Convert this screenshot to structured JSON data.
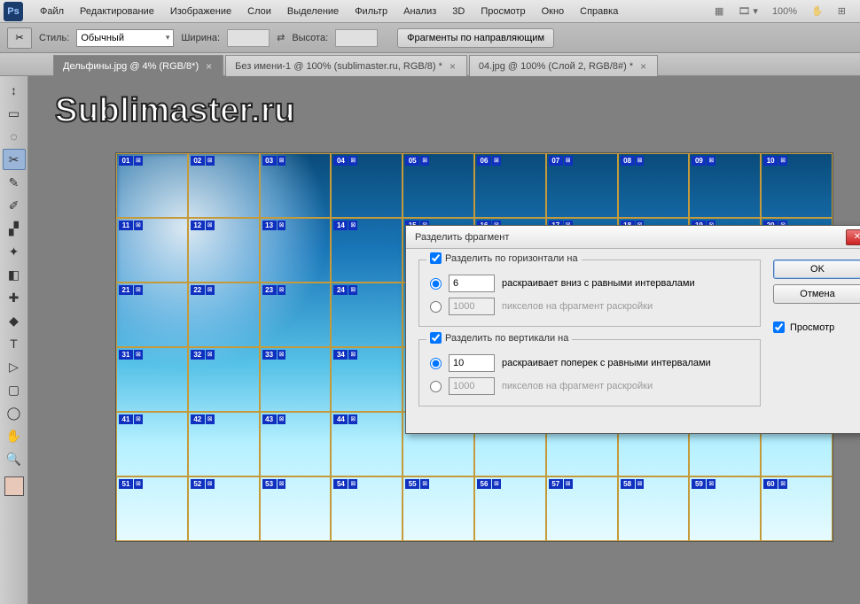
{
  "menu": {
    "items": [
      "Файл",
      "Редактирование",
      "Изображение",
      "Слои",
      "Выделение",
      "Фильтр",
      "Анализ",
      "3D",
      "Просмотр",
      "Окно",
      "Справка"
    ],
    "zoom": "100%"
  },
  "options": {
    "style_label": "Стиль:",
    "style_value": "Обычный",
    "width_label": "Ширина:",
    "height_label": "Высота:",
    "button": "Фрагменты по направляющим"
  },
  "tabs": [
    {
      "label": "Дельфины.jpg @ 4% (RGB/8*) ×",
      "active": true
    },
    {
      "label": "Без имени-1 @ 100% (sublimaster.ru, RGB/8) * ×",
      "active": false
    },
    {
      "label": "04.jpg @ 100% (Слой 2, RGB/8#) * ×",
      "active": false
    }
  ],
  "watermark": "Sublimaster.ru",
  "tools": [
    "↕",
    "▭",
    "◌",
    "✂",
    "✎",
    "✐",
    "▞",
    "✦",
    "◧",
    "✚",
    "◆",
    "T",
    "▷",
    "▢",
    "◯",
    "✋",
    "🔍"
  ],
  "swatch_fg": "#e8c8b8",
  "slice": {
    "rows": 6,
    "cols": 10
  },
  "dialog": {
    "title": "Разделить фрагмент",
    "ok": "OK",
    "cancel": "Отмена",
    "preview": "Просмотр",
    "h": {
      "legend": "Разделить по горизонтали на",
      "val": "6",
      "desc1": "раскраивает вниз с равными интервалами",
      "px": "1000",
      "desc2": "пикселов на фрагмент раскройки"
    },
    "v": {
      "legend": "Разделить по вертикали на",
      "val": "10",
      "desc1": "раскраивает поперек с равными интервалами",
      "px": "1000",
      "desc2": "пикселов на фрагмент раскройки"
    }
  }
}
